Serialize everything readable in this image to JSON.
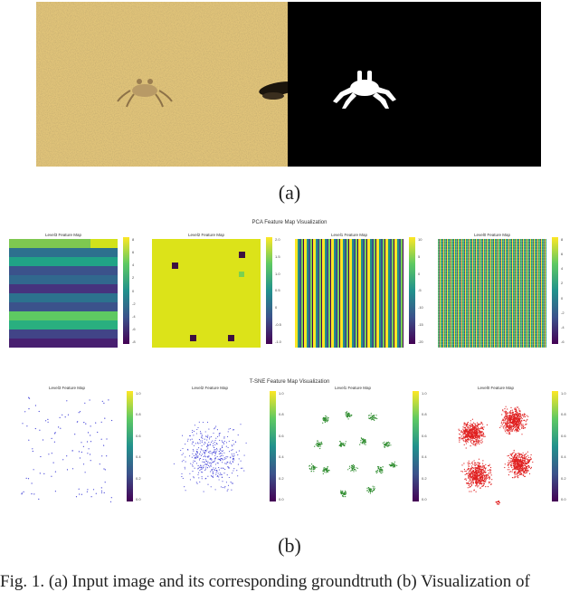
{
  "captions": {
    "a": "(a)",
    "b": "(b)"
  },
  "figure_caption": "Fig. 1.   (a) Input image and its corresponding groundtruth (b) Visualization of",
  "pca": {
    "title": "PCA Feature Map Visualization",
    "panels": [
      {
        "title": "Level3 Feature Map",
        "cbar": [
          "8",
          "6",
          "4",
          "2",
          "0",
          "-2",
          "-4",
          "-6",
          "-8"
        ]
      },
      {
        "title": "Level2 Feature Map",
        "cbar": [
          "2.0",
          "1.5",
          "1.0",
          "0.5",
          "0",
          "-0.5",
          "-1.0"
        ]
      },
      {
        "title": "Level1 Feature Map",
        "cbar": [
          "10",
          "5",
          "0",
          "-5",
          "-10",
          "-15",
          "-20"
        ]
      },
      {
        "title": "Level0 Feature Map",
        "cbar": [
          "8",
          "6",
          "4",
          "2",
          "0",
          "-2",
          "-4",
          "-6"
        ]
      }
    ]
  },
  "tsne": {
    "title": "T-SNE Feature Map Visualization",
    "panels": [
      {
        "title": "Level3 Feature Map",
        "color": "#3b3bd6",
        "cbar": [
          "1.0",
          "0.8",
          "0.6",
          "0.4",
          "0.2",
          "0.0"
        ]
      },
      {
        "title": "Level2 Feature Map",
        "color": "#3b3bd6",
        "cbar": [
          "1.0",
          "0.8",
          "0.6",
          "0.4",
          "0.2",
          "0.0"
        ]
      },
      {
        "title": "Level1 Feature Map",
        "color": "#2a8a2a",
        "cbar": [
          "1.0",
          "0.8",
          "0.6",
          "0.4",
          "0.2",
          "0.0"
        ]
      },
      {
        "title": "Level0 Feature Map",
        "color": "#e02020",
        "cbar": [
          "1.0",
          "0.8",
          "0.6",
          "0.4",
          "0.2",
          "0.0"
        ]
      }
    ]
  },
  "colors": {
    "sand": "#e3c77c",
    "mask_bg": "#000000",
    "mask_fg": "#ffffff"
  }
}
